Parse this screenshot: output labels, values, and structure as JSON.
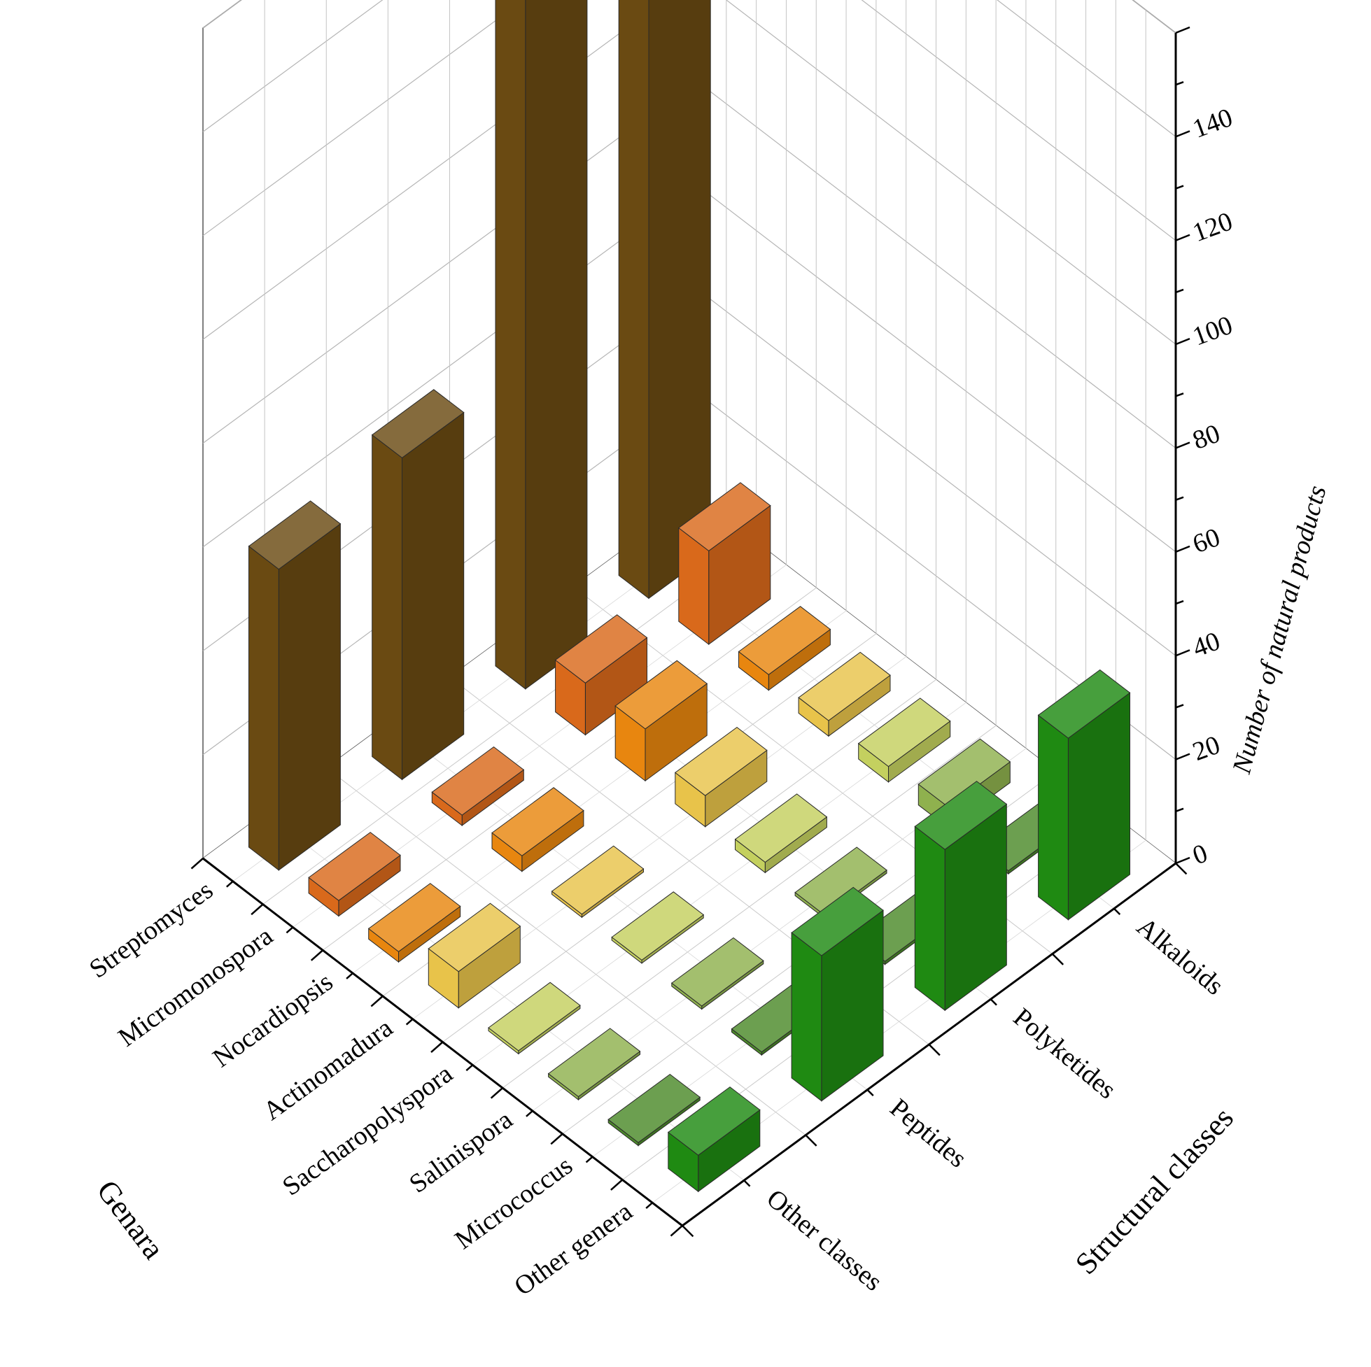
{
  "chart_data": {
    "type": "bar3d",
    "zlabel": "Number of natural products",
    "xlabel": "Genara",
    "ylabel": "Structural classes",
    "zlim": [
      0,
      160
    ],
    "zticks": [
      0,
      20,
      40,
      60,
      80,
      100,
      120,
      140
    ],
    "genera": [
      "Streptomyces",
      "Micromonospora",
      "Nocardiopsis",
      "Actinomadura",
      "Saccharopolyspora",
      "Salinispora",
      "Micrococcus",
      "Other genera"
    ],
    "classes": [
      "Other classes",
      "Peptides",
      "Polyketides",
      "Alkaloids"
    ],
    "values": [
      [
        58,
        62,
        135,
        150
      ],
      [
        3,
        2,
        10,
        18
      ],
      [
        2,
        3,
        10,
        3
      ],
      [
        7,
        0,
        6,
        3
      ],
      [
        0,
        0,
        2,
        3
      ],
      [
        0,
        0,
        0,
        4
      ],
      [
        0,
        0,
        0,
        0
      ],
      [
        7,
        28,
        31,
        35
      ]
    ],
    "bar_colors": [
      "#6a4a12",
      "#d9691b",
      "#e8860f",
      "#e8c34a",
      "#c4d05f",
      "#8fb14e",
      "#4c8a2a",
      "#1f8a12"
    ],
    "grid": true
  }
}
